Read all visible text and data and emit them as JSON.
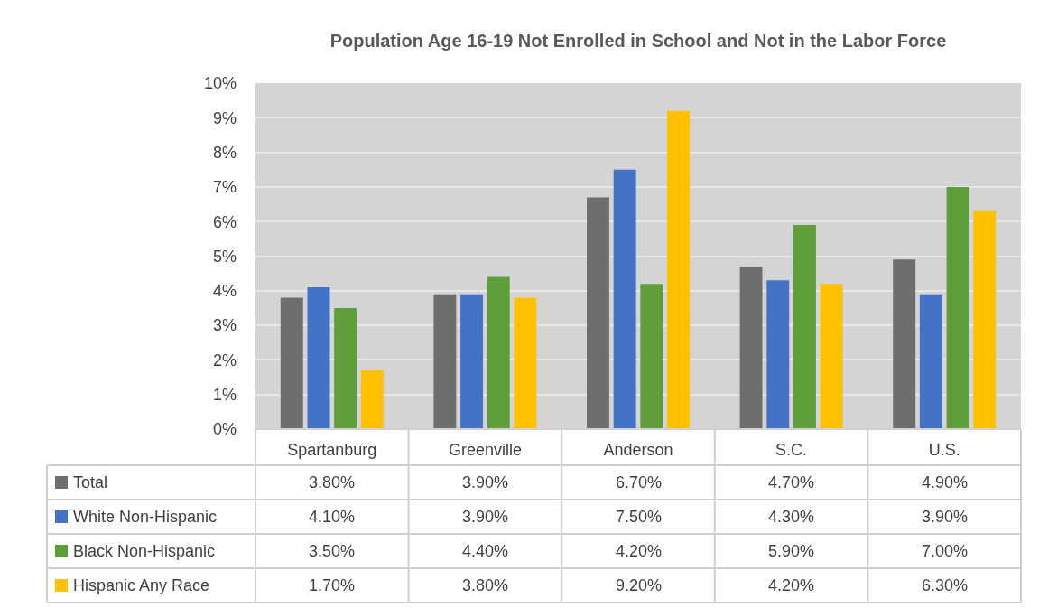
{
  "chart_data": {
    "type": "bar",
    "title": "Population Age 16-19 Not Enrolled in School and Not in the Labor Force",
    "categories": [
      "Spartanburg",
      "Greenville",
      "Anderson",
      "S.C.",
      "U.S."
    ],
    "series": [
      {
        "name": "Total",
        "color": "#6e6e6e",
        "values": [
          3.8,
          3.9,
          6.7,
          4.7,
          4.9
        ],
        "value_labels": [
          "3.80%",
          "3.90%",
          "6.70%",
          "4.70%",
          "4.90%"
        ]
      },
      {
        "name": "White Non-Hispanic",
        "color": "#4472c4",
        "values": [
          4.1,
          3.9,
          7.5,
          4.3,
          3.9
        ],
        "value_labels": [
          "4.10%",
          "3.90%",
          "7.50%",
          "4.30%",
          "3.90%"
        ]
      },
      {
        "name": "Black Non-Hispanic",
        "color": "#5f9e3a",
        "values": [
          3.5,
          4.4,
          4.2,
          5.9,
          7.0
        ],
        "value_labels": [
          "3.50%",
          "4.40%",
          "4.20%",
          "5.90%",
          "7.00%"
        ]
      },
      {
        "name": "Hispanic Any Race",
        "color": "#ffc000",
        "values": [
          1.7,
          3.8,
          9.2,
          4.2,
          6.3
        ],
        "value_labels": [
          "1.70%",
          "3.80%",
          "9.20%",
          "4.20%",
          "6.30%"
        ]
      }
    ],
    "ylim": [
      0,
      10
    ],
    "yticks": [
      {
        "value": 0,
        "label": "0%"
      },
      {
        "value": 1,
        "label": "1%"
      },
      {
        "value": 2,
        "label": "2%"
      },
      {
        "value": 3,
        "label": "3%"
      },
      {
        "value": 4,
        "label": "4%"
      },
      {
        "value": 5,
        "label": "5%"
      },
      {
        "value": 6,
        "label": "6%"
      },
      {
        "value": 7,
        "label": "7%"
      },
      {
        "value": 8,
        "label": "8%"
      },
      {
        "value": 9,
        "label": "9%"
      },
      {
        "value": 10,
        "label": "10%"
      }
    ],
    "grid": "y",
    "legend": "bottom left"
  }
}
